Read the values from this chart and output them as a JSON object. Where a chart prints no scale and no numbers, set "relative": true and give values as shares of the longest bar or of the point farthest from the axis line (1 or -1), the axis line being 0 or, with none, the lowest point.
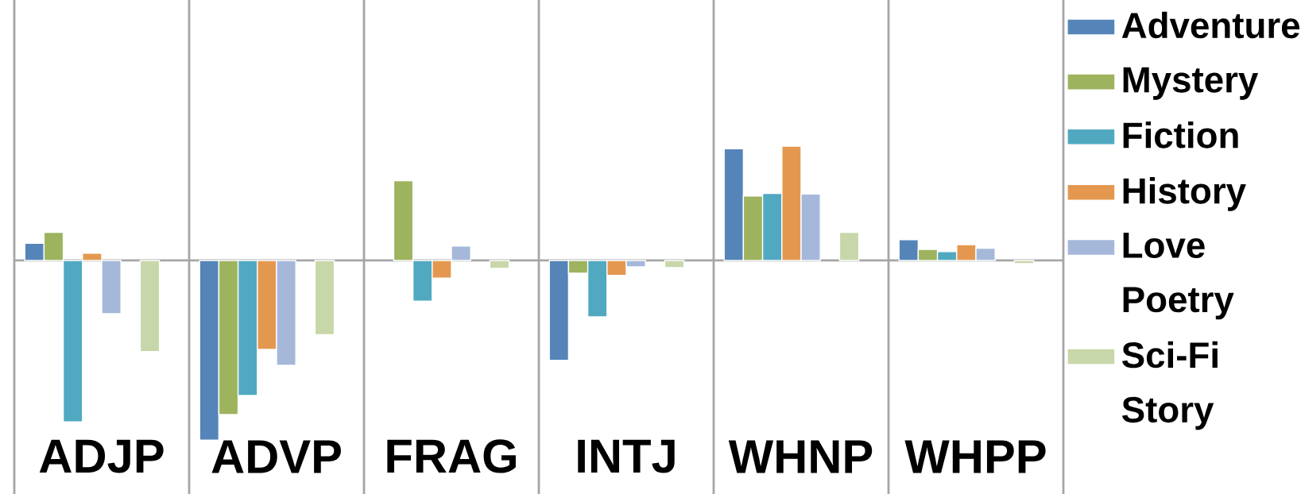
{
  "chart_data": {
    "type": "bar",
    "relative": true,
    "categories": [
      "ADJP",
      "ADVP",
      "FRAG",
      "INTJ",
      "WHNP",
      "WHPP"
    ],
    "grid": "x",
    "legend": "right",
    "series": [
      {
        "name": "Adventure",
        "color": "#5585b8",
        "values": [
          0.096,
          -1,
          null,
          -0.556,
          0.622,
          0.116
        ]
      },
      {
        "name": "Mystery",
        "color": "#9db35e",
        "values": [
          0.157,
          -0.858,
          0.444,
          -0.071,
          0.359,
          0.061
        ]
      },
      {
        "name": "Fiction",
        "color": "#50a9c0",
        "values": [
          -0.899,
          -0.752,
          -0.227,
          -0.314,
          0.373,
          0.049
        ]
      },
      {
        "name": "History",
        "color": "#e4984f",
        "values": [
          0.04,
          -0.495,
          -0.098,
          -0.083,
          0.636,
          0.088
        ]
      },
      {
        "name": "Love",
        "color": "#a5b8da",
        "values": [
          -0.296,
          -0.584,
          0.08,
          -0.036,
          0.37,
          0.068
        ]
      },
      {
        "name": "Poetry",
        "values": [
          null,
          null,
          null,
          null,
          null,
          null
        ]
      },
      {
        "name": "Sci-Fi",
        "color": "#c8d7a9",
        "values": [
          -0.507,
          -0.413,
          -0.044,
          -0.04,
          0.157,
          -0.018
        ]
      },
      {
        "name": "Story",
        "values": [
          null,
          null,
          null,
          null,
          null,
          null
        ]
      }
    ]
  }
}
